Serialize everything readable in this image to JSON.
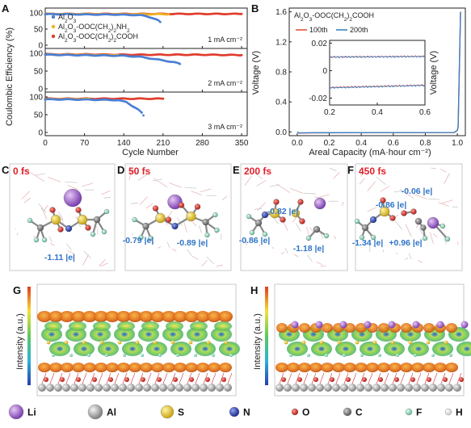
{
  "panels": {
    "A": "A",
    "B": "B",
    "C": "C",
    "D": "D",
    "E": "E",
    "F": "F",
    "G": "G",
    "H": "H"
  },
  "colors": {
    "al2o3": "#4a7fd4",
    "nh2": "#f0b020",
    "cooh": "#e03c2c",
    "line_100th": "#e5533d",
    "line_200th": "#3b82c4",
    "time_label": "#e0202a",
    "charge_label": "#2f73c6"
  },
  "chart_data": [
    {
      "panel": "A",
      "type": "scatter",
      "xlabel": "Cycle Number",
      "ylabel": "Coulombic Efficiency (%)",
      "x_ticks": [
        "0",
        "70",
        "140",
        "210",
        "280",
        "350"
      ],
      "xlim": [
        0,
        360
      ],
      "y_ticks": [
        "0",
        "50",
        "100"
      ],
      "ylim": [
        0,
        100
      ],
      "legend": [
        "Al2O3",
        "Al2O3-OOC(CH2)2NH2",
        "Al2O3-OOC(CH2)2COOH"
      ],
      "subplots": [
        {
          "current_label": "1 mA cm⁻²",
          "series": [
            {
              "name": "Al2O3",
              "points": [
                [
                  0,
                  96
                ],
                [
                  40,
                  96
                ],
                [
                  80,
                  95
                ],
                [
                  120,
                  95
                ],
                [
                  150,
                  94
                ],
                [
                  170,
                  93
                ],
                [
                  180,
                  90
                ],
                [
                  190,
                  85
                ],
                [
                  200,
                  78
                ],
                [
                  205,
                  72
                ]
              ]
            },
            {
              "name": "Al2O3-OOC(CH2)2NH2",
              "points": [
                [
                  0,
                  97
                ],
                [
                  50,
                  97
                ],
                [
                  100,
                  96
                ],
                [
                  150,
                  96
                ],
                [
                  200,
                  96
                ],
                [
                  220,
                  96
                ]
              ]
            },
            {
              "name": "Al2O3-OOC(CH2)2COOH",
              "points": [
                [
                  0,
                  97
                ],
                [
                  60,
                  97
                ],
                [
                  120,
                  97
                ],
                [
                  180,
                  97
                ],
                [
                  240,
                  97
                ],
                [
                  300,
                  97
                ],
                [
                  350,
                  97
                ]
              ]
            }
          ]
        },
        {
          "current_label": "2 mA cm⁻²",
          "series": [
            {
              "name": "Al2O3",
              "points": [
                [
                  0,
                  96
                ],
                [
                  50,
                  95
                ],
                [
                  100,
                  94
                ],
                [
                  140,
                  93
                ],
                [
                  170,
                  90
                ],
                [
                  190,
                  85
                ],
                [
                  210,
                  80
                ],
                [
                  230,
                  75
                ],
                [
                  240,
                  70
                ]
              ]
            },
            {
              "name": "Al2O3-OOC(CH2)2NH2",
              "points": [
                [
                  0,
                  96
                ],
                [
                  50,
                  96
                ],
                [
                  100,
                  95
                ],
                [
                  130,
                  95
                ]
              ]
            },
            {
              "name": "Al2O3-OOC(CH2)2COOH",
              "points": [
                [
                  0,
                  97
                ],
                [
                  70,
                  97
                ],
                [
                  140,
                  96
                ],
                [
                  210,
                  96
                ],
                [
                  280,
                  96
                ],
                [
                  350,
                  95
                ]
              ]
            }
          ]
        },
        {
          "current_label": "3 mA cm⁻²",
          "series": [
            {
              "name": "Al2O3",
              "points": [
                [
                  0,
                  93
                ],
                [
                  40,
                  93
                ],
                [
                  90,
                  92
                ],
                [
                  130,
                  91
                ],
                [
                  145,
                  85
                ],
                [
                  155,
                  75
                ],
                [
                  165,
                  65
                ],
                [
                  172,
                  55
                ],
                [
                  175,
                  48
                ]
              ]
            },
            {
              "name": "Al2O3-OOC(CH2)2NH2",
              "points": [
                [
                  0,
                  94
                ],
                [
                  40,
                  94
                ],
                [
                  80,
                  94
                ]
              ]
            },
            {
              "name": "Al2O3-OOC(CH2)2COOH",
              "points": [
                [
                  0,
                  95
                ],
                [
                  50,
                  95
                ],
                [
                  100,
                  95
                ],
                [
                  150,
                  95
                ],
                [
                  200,
                  95
                ],
                [
                  210,
                  95
                ]
              ]
            }
          ]
        }
      ]
    },
    {
      "panel": "B",
      "type": "line",
      "title": "Al2O3-OOC(CH2)2COOH",
      "xlabel": "Areal Capacity (mA·hour cm⁻²)",
      "ylabel": "Voltage (V)",
      "x_ticks": [
        "0.0",
        "0.2",
        "0.4",
        "0.6",
        "0.8",
        "1.0"
      ],
      "xlim": [
        -0.05,
        1.05
      ],
      "y_ticks": [
        "0.0",
        "0.4",
        "0.8",
        "1.2",
        "1.6"
      ],
      "ylim": [
        -0.05,
        1.65
      ],
      "series": [
        {
          "name": "100th",
          "x": [
            0,
            0.01,
            0.1,
            0.5,
            0.98,
            1.0,
            1.005,
            1.02
          ],
          "y": [
            0.0,
            -0.015,
            -0.012,
            -0.01,
            -0.009,
            0.02,
            0.07,
            1.6
          ]
        },
        {
          "name": "200th",
          "x": [
            0,
            0.01,
            0.1,
            0.5,
            0.98,
            1.0,
            1.005,
            1.02
          ],
          "y": [
            0.0,
            -0.013,
            -0.011,
            -0.009,
            -0.008,
            0.02,
            0.07,
            1.6
          ]
        }
      ],
      "inset": {
        "ylabel": "Voltage (V)",
        "x_ticks": [
          "0.2",
          "0.4",
          "0.6"
        ],
        "xlim": [
          0.2,
          0.6
        ],
        "y_ticks": [
          "0.02",
          "0",
          "-0.02"
        ],
        "ylim": [
          -0.025,
          0.022
        ],
        "series": [
          {
            "name": "100th",
            "x": [
              0.2,
              0.3,
              0.4,
              0.5,
              0.6
            ],
            "y": [
              0.01,
              0.0101,
              0.0102,
              0.0103,
              0.0104
            ]
          },
          {
            "name": "200th",
            "x": [
              0.2,
              0.3,
              0.4,
              0.5,
              0.6
            ],
            "y": [
              0.0098,
              0.0099,
              0.01,
              0.0101,
              0.0102
            ]
          },
          {
            "name": "100th",
            "x": [
              0.2,
              0.3,
              0.4,
              0.5,
              0.6
            ],
            "y": [
              -0.0122,
              -0.0118,
              -0.0114,
              -0.011,
              -0.0105
            ]
          },
          {
            "name": "200th",
            "x": [
              0.2,
              0.3,
              0.4,
              0.5,
              0.6
            ],
            "y": [
              -0.0125,
              -0.0121,
              -0.0117,
              -0.0112,
              -0.0108
            ]
          }
        ]
      }
    }
  ],
  "md": [
    {
      "time": "0 fs",
      "charges": [
        "-1.11 |e|"
      ]
    },
    {
      "time": "50 fs",
      "charges": [
        "-0.79 |e|",
        "-0.89 |e|"
      ]
    },
    {
      "time": "200 fs",
      "charges": [
        "-0.82 |e|",
        "-0.86 |e|",
        "-1.18 |e|"
      ]
    },
    {
      "time": "450 fs",
      "charges": [
        "-0.06 |e|",
        "-0.86 |e|",
        "-1.34 |e|",
        "+0.96 |e|"
      ]
    }
  ],
  "maps": {
    "ylabel": "Intensity (a.u.)"
  },
  "elements": [
    {
      "symbol": "Li",
      "color": "#9b59c9"
    },
    {
      "symbol": "Al",
      "color": "#b8b8b8"
    },
    {
      "symbol": "S",
      "color": "#e6c82a"
    },
    {
      "symbol": "N",
      "color": "#2a3fb0"
    },
    {
      "symbol": "O",
      "color": "#e02a2a"
    },
    {
      "symbol": "C",
      "color": "#8a8a8a"
    },
    {
      "symbol": "F",
      "color": "#8fd6b8"
    },
    {
      "symbol": "H",
      "color": "#ffffff"
    }
  ]
}
